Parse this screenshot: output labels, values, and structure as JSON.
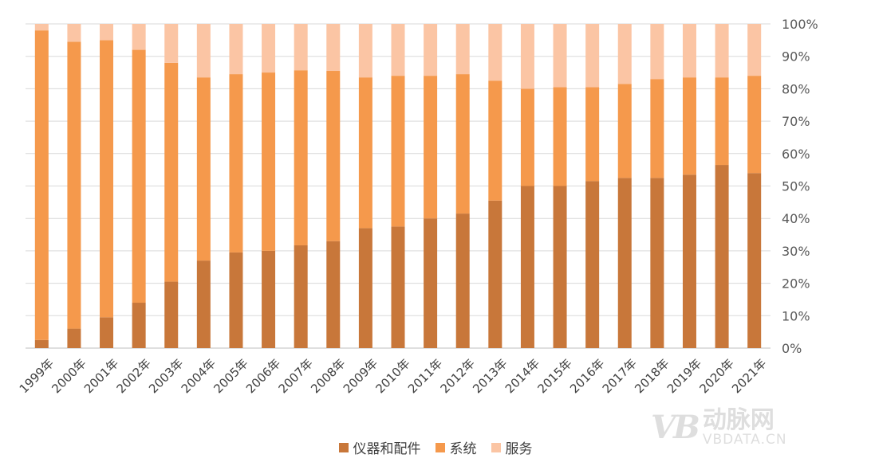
{
  "chart_data": {
    "type": "bar",
    "stacked": true,
    "percent_stacked": true,
    "categories": [
      "1999年",
      "2000年",
      "2001年",
      "2002年",
      "2003年",
      "2004年",
      "2005年",
      "2006年",
      "2007年",
      "2008年",
      "2009年",
      "2010年",
      "2011年",
      "2012年",
      "2013年",
      "2014年",
      "2015年",
      "2016年",
      "2017年",
      "2018年",
      "2019年",
      "2020年",
      "2021年"
    ],
    "series": [
      {
        "name": "仪器和配件",
        "color": "#c8773a",
        "values": [
          2.5,
          6,
          9.5,
          14,
          20.5,
          27,
          29.5,
          30,
          31.7,
          33,
          37,
          37.5,
          40,
          41.5,
          45.5,
          50,
          50,
          51.5,
          52.5,
          52.5,
          53.5,
          56.5,
          54
        ]
      },
      {
        "name": "系统",
        "color": "#f5994c",
        "values": [
          95.5,
          88.5,
          85.5,
          78,
          67.5,
          56.5,
          55,
          55,
          54,
          52.5,
          46.5,
          46.5,
          44,
          43,
          37,
          30,
          30.5,
          29,
          29,
          30.5,
          30,
          27,
          30
        ]
      },
      {
        "name": "服务",
        "color": "#fbc5a4",
        "values": [
          2,
          5.5,
          5,
          8,
          12,
          16.5,
          15.5,
          15,
          14.3,
          14.5,
          16.5,
          16,
          16,
          15.5,
          17.5,
          20,
          19.5,
          19.5,
          18.5,
          17,
          16.5,
          16.5,
          16
        ]
      }
    ],
    "y_axis": {
      "position": "right",
      "ylim": [
        0,
        100
      ],
      "tick_labels": [
        "0%",
        "10%",
        "20%",
        "30%",
        "40%",
        "50%",
        "60%",
        "70%",
        "80%",
        "90%",
        "100%"
      ]
    },
    "grid": true,
    "legend": "bottom-center"
  },
  "watermark": {
    "logo": "VB",
    "cn": "动脉网",
    "en": "VBDATA.CN"
  }
}
